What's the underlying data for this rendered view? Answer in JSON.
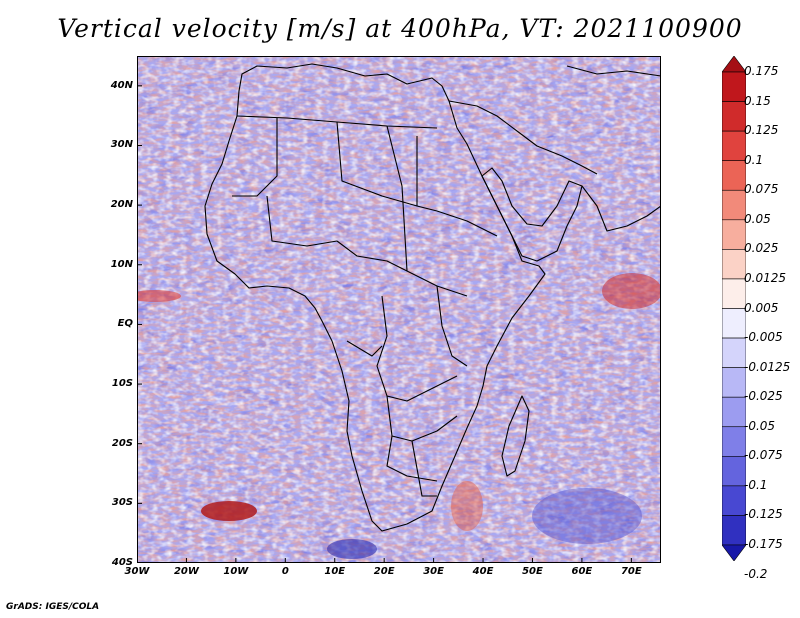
{
  "title": "Vertical velocity [m/s] at 400hPa, VT: 2021100900",
  "axes": {
    "lat_labels": [
      "40N",
      "30N",
      "20N",
      "10N",
      "EQ",
      "10S",
      "20S",
      "30S",
      "40S"
    ],
    "lon_labels": [
      "30W",
      "20W",
      "10W",
      "0",
      "10E",
      "20E",
      "30E",
      "40E",
      "50E",
      "60E",
      "70E"
    ],
    "lon_range": [
      -30,
      76
    ],
    "lat_range": [
      -40,
      45
    ]
  },
  "colorbar": {
    "labels": [
      "0.175",
      "0.15",
      "0.125",
      "0.1",
      "0.075",
      "0.05",
      "0.025",
      "0.0125",
      "0.005",
      "-0.005",
      "-0.0125",
      "-0.025",
      "-0.05",
      "-0.075",
      "-0.1",
      "-0.125",
      "-0.175",
      "-0.2"
    ],
    "colors": [
      "#a50f15",
      "#c0171c",
      "#d02b2b",
      "#e0433e",
      "#eb6456",
      "#f28a7a",
      "#f7ae9e",
      "#fbd2c6",
      "#fdeeea",
      "#eeeefe",
      "#d4d4fb",
      "#b8b8f6",
      "#9c9cf0",
      "#7f7fe8",
      "#6464de",
      "#4848d2",
      "#3030c0",
      "#1818a8"
    ]
  },
  "footer": "GrADS: IGES/COLA"
}
